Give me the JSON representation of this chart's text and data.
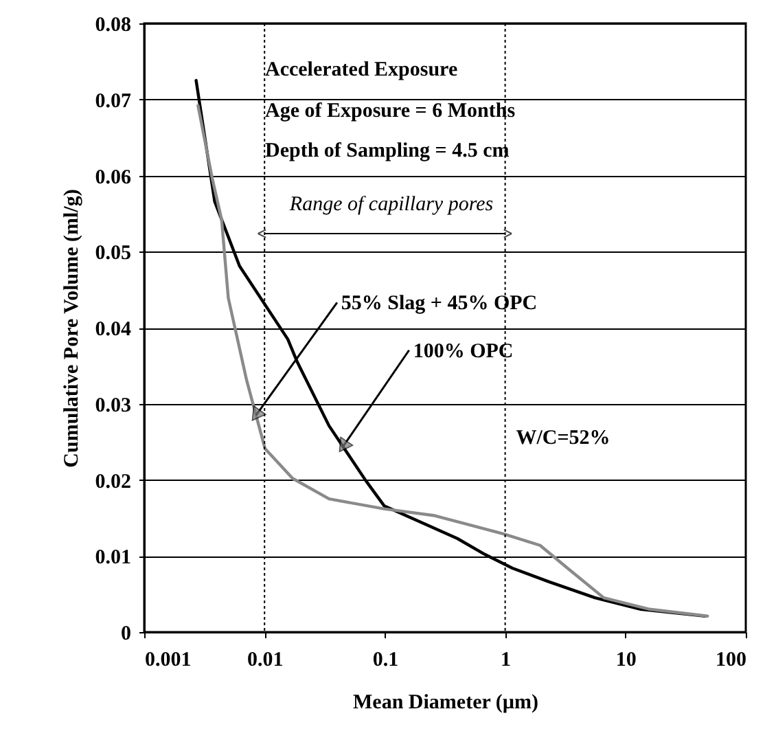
{
  "chart_data": {
    "type": "line",
    "xlabel": "Mean Diameter (µm)",
    "ylabel": "Cumulative Pore Volume (ml/g)",
    "log": "x",
    "xlim": [
      0.001,
      100
    ],
    "xticks": [
      0.001,
      0.01,
      0.1,
      1,
      10,
      100
    ],
    "ylim": [
      0,
      0.08
    ],
    "yticks": [
      0,
      0.01,
      0.02,
      0.03,
      0.04,
      0.05,
      0.06,
      0.07,
      0.08
    ],
    "grid": "y",
    "marker": "none",
    "line_style": "solid",
    "series": [
      {
        "color": "#000000",
        "x": [
          0.0027,
          0.00385,
          0.0062,
          0.0156,
          0.0187,
          0.0344,
          0.0695,
          0.0986,
          0.4,
          0.68,
          1.15,
          2.32,
          5.6,
          13.4,
          45.7
        ],
        "values": [
          0.0725,
          0.0566,
          0.0481,
          0.0385,
          0.0355,
          0.0271,
          0.0199,
          0.0166,
          0.0123,
          0.0102,
          0.0084,
          0.0066,
          0.0045,
          0.003,
          0.0021
        ]
      },
      {
        "color": "#8a8a8a",
        "x": [
          0.0028,
          0.00368,
          0.0044,
          0.005,
          0.0071,
          0.0101,
          0.0171,
          0.0344,
          0.0986,
          0.26,
          0.97,
          1.95,
          3.3,
          6.6,
          15.9,
          48
        ],
        "values": [
          0.0692,
          0.0596,
          0.0542,
          0.0439,
          0.0331,
          0.0241,
          0.0202,
          0.0175,
          0.0162,
          0.0153,
          0.0129,
          0.0114,
          0.0084,
          0.0045,
          0.003,
          0.0021
        ]
      }
    ],
    "ref_lines": [
      {
        "axis": "x",
        "value": 0.01,
        "line_style": "dotted"
      },
      {
        "axis": "x",
        "value": 1,
        "line_style": "dotted"
      }
    ],
    "annotations": [
      "Accelerated Exposure",
      "Age of Exposure = 6 Months",
      "Depth of Sampling = 4.5 cm",
      "Range of capillary pores",
      "W/C=52%",
      {
        "text": "55% Slag + 45% OPC",
        "x": 0.0085,
        "y": 0.0285
      },
      {
        "text": "100% OPC",
        "x": 0.045,
        "y": 0.0244
      }
    ]
  }
}
